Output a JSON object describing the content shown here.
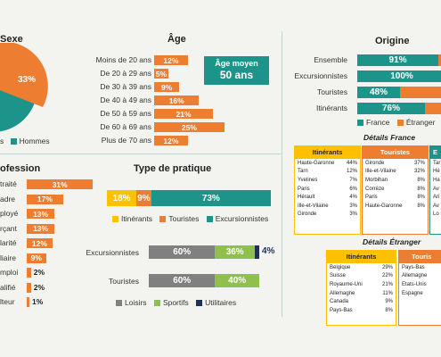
{
  "sexe": {
    "title": "Sexe",
    "pct_hommes": "33%",
    "legend_right": "Hommes",
    "legend_left": "s"
  },
  "profession": {
    "title": "ofession",
    "rows": [
      {
        "label": "traité",
        "value": 31,
        "text": "31%"
      },
      {
        "label": "adre",
        "value": 17,
        "text": "17%"
      },
      {
        "label": "ployé",
        "value": 13,
        "text": "13%"
      },
      {
        "label": "rçant",
        "value": 13,
        "text": "13%"
      },
      {
        "label": "larité",
        "value": 12,
        "text": "12%"
      },
      {
        "label": "liaire",
        "value": 9,
        "text": "9%"
      },
      {
        "label": "mploi",
        "value": 2,
        "text": "2%"
      },
      {
        "label": "alifié",
        "value": 2,
        "text": "2%"
      },
      {
        "label": "lteur",
        "value": 1,
        "text": "1%"
      }
    ]
  },
  "age": {
    "title": "Âge",
    "avg_label": "Âge moyen",
    "avg_value": "50 ans",
    "rows": [
      {
        "label": "Moins de 20 ans",
        "value": 12,
        "text": "12%"
      },
      {
        "label": "De 20 à 29 ans",
        "value": 5,
        "text": "5%"
      },
      {
        "label": "De 30 à 39 ans",
        "value": 9,
        "text": "9%"
      },
      {
        "label": "De 40 à 49 ans",
        "value": 16,
        "text": "16%"
      },
      {
        "label": "De 50 à 59 ans",
        "value": 21,
        "text": "21%"
      },
      {
        "label": "De 60 à 69 ans",
        "value": 25,
        "text": "25%"
      },
      {
        "label": "Plus de 70 ans",
        "value": 12,
        "text": "12%"
      }
    ]
  },
  "pratique": {
    "title": "Type de pratique",
    "stack": [
      {
        "name": "Itinérants",
        "value": 18,
        "text": "18%",
        "color": "#ffc000"
      },
      {
        "name": "Touristes",
        "value": 9,
        "text": "9%",
        "color": "#ed7d31"
      },
      {
        "name": "Excursionnistes",
        "value": 73,
        "text": "73%",
        "color": "#1d948a"
      }
    ],
    "activity_rows": [
      {
        "label": "Excursionnistes",
        "segments": [
          {
            "name": "Loisirs",
            "value": 60,
            "text": "60%",
            "color": "#808080"
          },
          {
            "name": "Sportifs",
            "value": 36,
            "text": "36%",
            "color": "#8fbf4d"
          },
          {
            "name": "Utilitaires",
            "value": 4,
            "text": "4%",
            "color": "#1f2f5c"
          }
        ]
      },
      {
        "label": "Touristes",
        "segments": [
          {
            "name": "Loisirs",
            "value": 60,
            "text": "60%",
            "color": "#808080"
          },
          {
            "name": "Sportifs",
            "value": 40,
            "text": "40%",
            "color": "#8fbf4d"
          }
        ]
      }
    ],
    "activity_legend": [
      "Loisirs",
      "Sportifs",
      "Utilitaires"
    ]
  },
  "origine": {
    "title": "Origine",
    "rows": [
      {
        "label": "Ensemble",
        "france": 91,
        "text": "91%"
      },
      {
        "label": "Excursionnistes",
        "france": 100,
        "text": "100%"
      },
      {
        "label": "Touristes",
        "france": 48,
        "text": "48%"
      },
      {
        "label": "Itinérants",
        "france": 76,
        "text": "76%"
      }
    ],
    "legend": [
      "France",
      "Étranger"
    ]
  },
  "details_france": {
    "title": "Détails France",
    "itinerants": {
      "header": "Itinérants",
      "rows": [
        [
          "Haute-Garonne",
          "44%"
        ],
        [
          "Tarn",
          "12%"
        ],
        [
          "Yvelines",
          "7%"
        ],
        [
          "Paris",
          "6%"
        ],
        [
          "Hérault",
          "4%"
        ],
        [
          "Ille-et-Vilaine",
          "3%"
        ],
        [
          "Gironde",
          "3%"
        ]
      ]
    },
    "touristes": {
      "header": "Touristes",
      "rows": [
        [
          "Gironde",
          "37%"
        ],
        [
          "Ille-et-Vilaine",
          "32%"
        ],
        [
          "Morbihan",
          "8%"
        ],
        [
          "Corrèze",
          "8%"
        ],
        [
          "Paris",
          "8%"
        ],
        [
          "Haute-Garonne",
          "8%"
        ]
      ]
    },
    "excursionnistes": {
      "header": "E",
      "rows": [
        [
          "Tar"
        ],
        [
          "Hé"
        ],
        [
          "Ha"
        ],
        [
          "Av"
        ],
        [
          "Ari"
        ],
        [
          "Av"
        ],
        [
          "Lo"
        ]
      ]
    }
  },
  "details_etranger": {
    "title": "Détails Étranger",
    "itinerants": {
      "header": "Itinérants",
      "rows": [
        [
          "Belgique",
          "29%"
        ],
        [
          "Suisse",
          "22%"
        ],
        [
          "Royaume-Uni",
          "21%"
        ],
        [
          "Allemagne",
          "11%"
        ],
        [
          "Canada",
          "9%"
        ],
        [
          "Pays-Bas",
          "8%"
        ]
      ]
    },
    "touristes": {
      "header": "Touris",
      "rows": [
        [
          "Pays-Bas"
        ],
        [
          "Allemagne"
        ],
        [
          "Etats-Unis"
        ],
        [
          "Espagne"
        ]
      ]
    }
  },
  "colors": {
    "orange": "#ed7d31",
    "teal": "#1d948a",
    "yellow": "#ffc000",
    "grey": "#808080",
    "green": "#8fbf4d",
    "navy": "#1f2f5c"
  },
  "chart_data": [
    {
      "type": "pie",
      "title": "Sexe",
      "categories": [
        "Hommes"
      ],
      "values": [
        33
      ]
    },
    {
      "type": "bar",
      "title": "Âge",
      "categories": [
        "Moins de 20 ans",
        "De 20 à 29 ans",
        "De 30 à 39 ans",
        "De 40 à 49 ans",
        "De 50 à 59 ans",
        "De 60 à 69 ans",
        "Plus de 70 ans"
      ],
      "values": [
        12,
        5,
        9,
        16,
        21,
        25,
        12
      ]
    },
    {
      "type": "bar",
      "title": "Type de pratique",
      "categories": [
        "Itinérants",
        "Touristes",
        "Excursionnistes"
      ],
      "values": [
        18,
        9,
        73
      ]
    },
    {
      "type": "bar",
      "categories": [
        "Excursionnistes",
        "Touristes"
      ],
      "series": [
        {
          "name": "Loisirs",
          "values": [
            60,
            60
          ]
        },
        {
          "name": "Sportifs",
          "values": [
            36,
            40
          ]
        },
        {
          "name": "Utilitaires",
          "values": [
            4,
            0
          ]
        }
      ]
    },
    {
      "type": "bar",
      "title": "Origine",
      "categories": [
        "Ensemble",
        "Excursionnistes",
        "Touristes",
        "Itinérants"
      ],
      "series": [
        {
          "name": "France",
          "values": [
            91,
            100,
            48,
            76
          ]
        }
      ]
    }
  ]
}
